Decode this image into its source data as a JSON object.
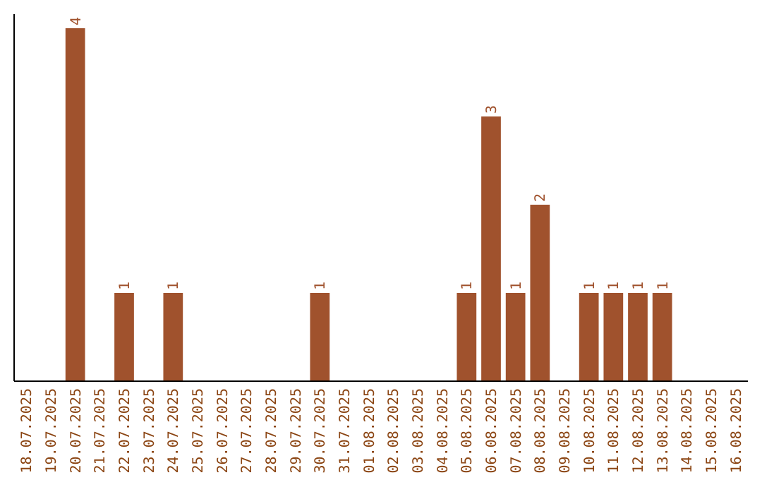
{
  "chart_data": {
    "type": "bar",
    "categories": [
      "18.07.2025",
      "19.07.2025",
      "20.07.2025",
      "21.07.2025",
      "22.07.2025",
      "23.07.2025",
      "24.07.2025",
      "25.07.2025",
      "26.07.2025",
      "27.07.2025",
      "28.07.2025",
      "29.07.2025",
      "30.07.2025",
      "31.07.2025",
      "01.08.2025",
      "02.08.2025",
      "03.08.2025",
      "04.08.2025",
      "05.08.2025",
      "06.08.2025",
      "07.08.2025",
      "08.08.2025",
      "09.08.2025",
      "10.08.2025",
      "11.08.2025",
      "12.08.2025",
      "13.08.2025",
      "14.08.2025",
      "15.08.2025",
      "16.08.2025"
    ],
    "values": [
      0,
      0,
      4,
      0,
      1,
      0,
      1,
      0,
      0,
      0,
      0,
      0,
      1,
      0,
      0,
      0,
      0,
      0,
      1,
      3,
      1,
      2,
      0,
      1,
      1,
      1,
      1,
      0,
      0,
      0
    ],
    "value_labels": [
      null,
      null,
      "4",
      null,
      "1",
      null,
      "1",
      null,
      null,
      null,
      null,
      null,
      "1",
      null,
      null,
      null,
      null,
      null,
      "1",
      "3",
      "1",
      "2",
      null,
      "1",
      "1",
      "1",
      "1",
      null,
      null,
      null
    ],
    "color": "#a0522d",
    "tick_labels": "x"
  }
}
